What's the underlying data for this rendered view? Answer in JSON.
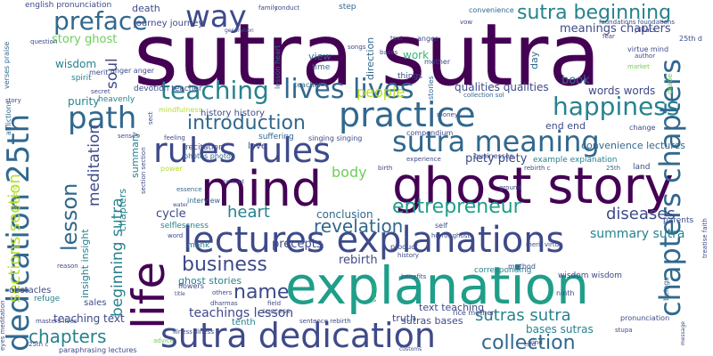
{
  "colors": {
    "background": "#ffffff",
    "palette": [
      "#440154",
      "#482878",
      "#3e4a89",
      "#31688e",
      "#26828e",
      "#1f9e89",
      "#35b779",
      "#6ece58",
      "#b5de2b",
      "#fde725"
    ]
  },
  "words": [
    {
      "id": "sutra-sutra",
      "text": "sutra sutra"
    },
    {
      "id": "explanation",
      "text": "explanation"
    },
    {
      "id": "ghost-story",
      "text": "ghost story"
    },
    {
      "id": "mind",
      "text": "mind"
    },
    {
      "id": "life",
      "text": "life"
    },
    {
      "id": "lectures-explanations",
      "text": "lectures explanations"
    },
    {
      "id": "sutra-dedication",
      "text": "sutra dedication"
    },
    {
      "id": "rules-rules",
      "text": "rules rules"
    },
    {
      "id": "practice",
      "text": "practice"
    },
    {
      "id": "sutra-meaning",
      "text": "sutra meaning"
    },
    {
      "id": "path",
      "text": "path"
    },
    {
      "id": "lives-lives",
      "text": "lives lives"
    },
    {
      "id": "way",
      "text": "way"
    },
    {
      "id": "teaching",
      "text": "teaching"
    },
    {
      "id": "preface",
      "text": "preface"
    },
    {
      "id": "happiness",
      "text": "happiness"
    },
    {
      "id": "dedication-25th",
      "text": "dedication 25th"
    },
    {
      "id": "chapters-chapters",
      "text": "chapters chapters"
    },
    {
      "id": "business",
      "text": "business"
    },
    {
      "id": "introduction",
      "text": "introduction"
    },
    {
      "id": "entrepreneur",
      "text": "entrepreneur"
    },
    {
      "id": "collection",
      "text": "collection"
    },
    {
      "id": "sutra-beginning",
      "text": "sutra beginning"
    },
    {
      "id": "lesson",
      "text": "lesson"
    },
    {
      "id": "heart",
      "text": "heart"
    },
    {
      "id": "name",
      "text": "name"
    },
    {
      "id": "revelation",
      "text": "revelation"
    },
    {
      "id": "chapters",
      "text": "chapters"
    },
    {
      "id": "sutras-sutra",
      "text": "sutras sutra"
    },
    {
      "id": "sections-section",
      "text": "sections section"
    },
    {
      "id": "meditation",
      "text": "meditation"
    },
    {
      "id": "beginning-sutra",
      "text": "beginning sutra"
    },
    {
      "id": "soul",
      "text": "soul"
    },
    {
      "id": "body",
      "text": "body"
    },
    {
      "id": "people",
      "text": "people"
    },
    {
      "id": "diseases",
      "text": "diseases"
    },
    {
      "id": "summary-sutra",
      "text": "summary sutra"
    },
    {
      "id": "teachings-lesson",
      "text": "teachings lesson"
    },
    {
      "id": "story-ghost",
      "text": "story ghost"
    },
    {
      "id": "wisdom",
      "text": "wisdom"
    },
    {
      "id": "purity",
      "text": "purity"
    },
    {
      "id": "meanings-chapters",
      "text": "meanings chapters"
    },
    {
      "id": "cycle",
      "text": "cycle"
    },
    {
      "id": "precepts",
      "text": "precepts"
    },
    {
      "id": "rebirth",
      "text": "rebirth"
    },
    {
      "id": "conclusion",
      "text": "conclusion"
    },
    {
      "id": "bases-sutras",
      "text": "bases sutras"
    },
    {
      "id": "piety-piety",
      "text": "piety piety"
    },
    {
      "id": "qualities-qualities",
      "text": "qualities qualities"
    },
    {
      "id": "book",
      "text": "book"
    },
    {
      "id": "words-words",
      "text": "words words"
    },
    {
      "id": "end-end",
      "text": "end end"
    },
    {
      "id": "convenience-lectures",
      "text": "convenience lectures"
    },
    {
      "id": "sutras-bases",
      "text": "sutras bases"
    },
    {
      "id": "text-teaching",
      "text": "text teaching"
    },
    {
      "id": "insight-insight",
      "text": "insight insight"
    },
    {
      "id": "teaching-text",
      "text": "teaching text"
    },
    {
      "id": "ghost-stories",
      "text": "ghost stories"
    },
    {
      "id": "summary",
      "text": "summary"
    },
    {
      "id": "chapters-small",
      "text": "chapters"
    },
    {
      "id": "history-history",
      "text": "history history"
    },
    {
      "id": "devotion-teacher",
      "text": "devotion teacher"
    },
    {
      "id": "work",
      "text": "work"
    },
    {
      "id": "view",
      "text": "view"
    },
    {
      "id": "death",
      "text": "death"
    },
    {
      "id": "journey-journey",
      "text": "journey journey"
    },
    {
      "id": "direction",
      "text": "direction"
    },
    {
      "id": "day",
      "text": "day"
    },
    {
      "id": "suffering",
      "text": "suffering"
    },
    {
      "id": "love",
      "text": "love"
    },
    {
      "id": "recitation",
      "text": "recitation"
    },
    {
      "id": "example-explanation",
      "text": "example explanation"
    },
    {
      "id": "corresponding",
      "text": "corresponding"
    },
    {
      "id": "wisdom-wisdom",
      "text": "wisdom wisdom"
    },
    {
      "id": "truth",
      "text": "truth"
    },
    {
      "id": "tenth",
      "text": "tenth"
    },
    {
      "id": "obstacles",
      "text": "obstacles"
    },
    {
      "id": "sales",
      "text": "sales"
    },
    {
      "id": "refuge",
      "text": "refuge"
    },
    {
      "id": "spirit",
      "text": "spirit"
    },
    {
      "id": "heavenly",
      "text": "heavenly"
    },
    {
      "id": "selflessness",
      "text": "selflessness"
    },
    {
      "id": "monk",
      "text": "monk"
    },
    {
      "id": "interview",
      "text": "interview"
    },
    {
      "id": "photos-photos",
      "text": "photos photos"
    },
    {
      "id": "flowers",
      "text": "flowers"
    },
    {
      "id": "english-pronunciation",
      "text": "english pronunciation"
    },
    {
      "id": "convenience",
      "text": "convenience"
    },
    {
      "id": "step",
      "text": "step"
    },
    {
      "id": "anger",
      "text": "anger"
    },
    {
      "id": "anger-anger",
      "text": "anger anger"
    },
    {
      "id": "merit",
      "text": "merit"
    },
    {
      "id": "mother",
      "text": "mother"
    },
    {
      "id": "things",
      "text": "things"
    },
    {
      "id": "time",
      "text": "time"
    },
    {
      "id": "teacher",
      "text": "teacher"
    },
    {
      "id": "lesson-heart",
      "text": "lesson heart"
    },
    {
      "id": "stories",
      "text": "stories"
    },
    {
      "id": "collection-sol",
      "text": "collection sol"
    },
    {
      "id": "compendium",
      "text": "compendium"
    },
    {
      "id": "businesses",
      "text": "businesses"
    },
    {
      "id": "money",
      "text": "money"
    },
    {
      "id": "virtue-mind",
      "text": "virtue mind"
    },
    {
      "id": "pillars",
      "text": "pillars"
    },
    {
      "id": "25th-d",
      "text": "25th d"
    },
    {
      "id": "author",
      "text": "author"
    },
    {
      "id": "grade",
      "text": "grade"
    },
    {
      "id": "market",
      "text": "market"
    },
    {
      "id": "change",
      "text": "change"
    },
    {
      "id": "land",
      "text": "land"
    },
    {
      "id": "25th",
      "text": "25th"
    },
    {
      "id": "parents",
      "text": "parents"
    },
    {
      "id": "ground",
      "text": "ground"
    },
    {
      "id": "self",
      "text": "self"
    },
    {
      "id": "merit-virtue",
      "text": "merit virtue"
    },
    {
      "id": "horror-ghost",
      "text": "horror ghost"
    },
    {
      "id": "history",
      "text": "history"
    },
    {
      "id": "product",
      "text": "product"
    },
    {
      "id": "method",
      "text": "method"
    },
    {
      "id": "rice-mother",
      "text": "rice mother"
    },
    {
      "id": "ninth",
      "text": "ninth"
    },
    {
      "id": "beings",
      "text": "beings"
    },
    {
      "id": "pronunciation",
      "text": "pronunciation"
    },
    {
      "id": "stupa",
      "text": "stupa"
    },
    {
      "id": "end",
      "text": "end"
    },
    {
      "id": "success",
      "text": "success"
    },
    {
      "id": "sentence-rebirth",
      "text": "sentence rebirth"
    },
    {
      "id": "benefits",
      "text": "benefits"
    },
    {
      "id": "birth",
      "text": "birth"
    },
    {
      "id": "rebirth-c",
      "text": "rebirth c"
    },
    {
      "id": "experience",
      "text": "experience"
    },
    {
      "id": "dharmas",
      "text": "dharmas"
    },
    {
      "id": "word",
      "text": "word"
    },
    {
      "id": "essence",
      "text": "essence"
    },
    {
      "id": "power",
      "text": "power"
    },
    {
      "id": "feeling",
      "text": "feeling"
    },
    {
      "id": "mindfulness",
      "text": "mindfulness"
    },
    {
      "id": "singing-singing",
      "text": "singing singing"
    },
    {
      "id": "paraphrasing-lectures",
      "text": "paraphrasing lectures"
    },
    {
      "id": "masters-lives",
      "text": "masters lives"
    },
    {
      "id": "verses-praise",
      "text": "verses praise"
    },
    {
      "id": "afflictions",
      "text": "afflictions"
    },
    {
      "id": "question",
      "text": "question"
    },
    {
      "id": "story",
      "text": "story"
    },
    {
      "id": "secret",
      "text": "secret"
    },
    {
      "id": "family",
      "text": "family"
    },
    {
      "id": "conduct",
      "text": "conduct"
    },
    {
      "id": "songs",
      "text": "songs"
    },
    {
      "id": "vow",
      "text": "vow"
    },
    {
      "id": "fear",
      "text": "fear"
    },
    {
      "id": "eyes-meditation",
      "text": "eyes meditation"
    },
    {
      "id": "25th-c",
      "text": "25th c"
    },
    {
      "id": "advice",
      "text": "advice"
    },
    {
      "id": "field",
      "text": "field"
    },
    {
      "id": "verse",
      "text": "verse"
    },
    {
      "id": "reason",
      "text": "reason"
    },
    {
      "id": "student",
      "text": "student"
    },
    {
      "id": "senses",
      "text": "senses"
    },
    {
      "id": "sect",
      "text": "sect"
    },
    {
      "id": "bases",
      "text": "bases"
    },
    {
      "id": "text",
      "text": "text"
    },
    {
      "id": "kind",
      "text": "kind"
    },
    {
      "id": "generation",
      "text": "generation"
    },
    {
      "id": "concept",
      "text": "concept"
    },
    {
      "id": "foundations-foundations",
      "text": "foundations foundations"
    },
    {
      "id": "treatise-faith",
      "text": "treatise faith"
    },
    {
      "id": "message",
      "text": "message"
    },
    {
      "id": "title",
      "text": "title"
    },
    {
      "id": "illness-illness",
      "text": "illness illness"
    },
    {
      "id": "customs",
      "text": "customs"
    },
    {
      "id": "others",
      "text": "others"
    },
    {
      "id": "water",
      "text": "water"
    },
    {
      "id": "section-section",
      "text": "section section"
    }
  ]
}
